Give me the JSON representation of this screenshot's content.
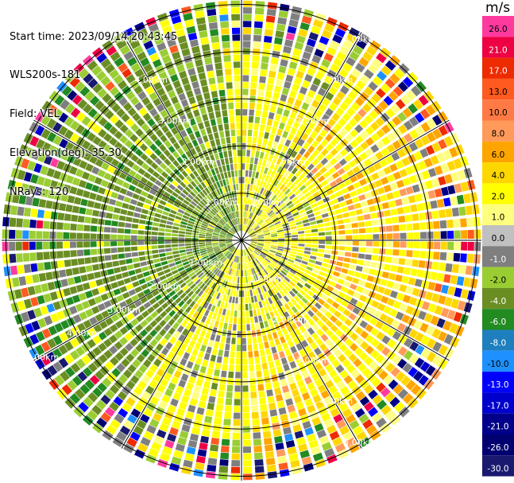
{
  "info": {
    "start_time": "Start time: 2023/09/14 20:43:45",
    "site": "WLS200s-181",
    "field": "Field: VEL",
    "elevation": "Elevation(deg): 35.30",
    "nrays": "NRays: 120"
  },
  "range_ring_labels": [
    "1.00km",
    "2.00km",
    "3.00km",
    "4.00km",
    "5.00km"
  ],
  "colorbar": {
    "unit": "m/s",
    "ticks": [
      "26.0",
      "21.0",
      "17.0",
      "13.0",
      "10.0",
      "8.0",
      "6.0",
      "4.0",
      "2.0",
      "1.0",
      "0.0",
      "-1.0",
      "-2.0",
      "-4.0",
      "-6.0",
      "-8.0",
      "-10.0",
      "-13.0",
      "-17.0",
      "-21.0",
      "-26.0",
      "-30.0"
    ],
    "colors": [
      "#ff3a9e",
      "#ee0044",
      "#ee2a00",
      "#ff5a1f",
      "#ff7a44",
      "#ff9a5a",
      "#ffa500",
      "#ffd700",
      "#ffff00",
      "#ffff7f",
      "#c0c0c0",
      "#7f7f7f",
      "#9acd32",
      "#6b8e23",
      "#228b22",
      "#1e7fbf",
      "#1e90ff",
      "#0000ff",
      "#0000cd",
      "#00008b",
      "#000070",
      "#191970"
    ]
  }
}
